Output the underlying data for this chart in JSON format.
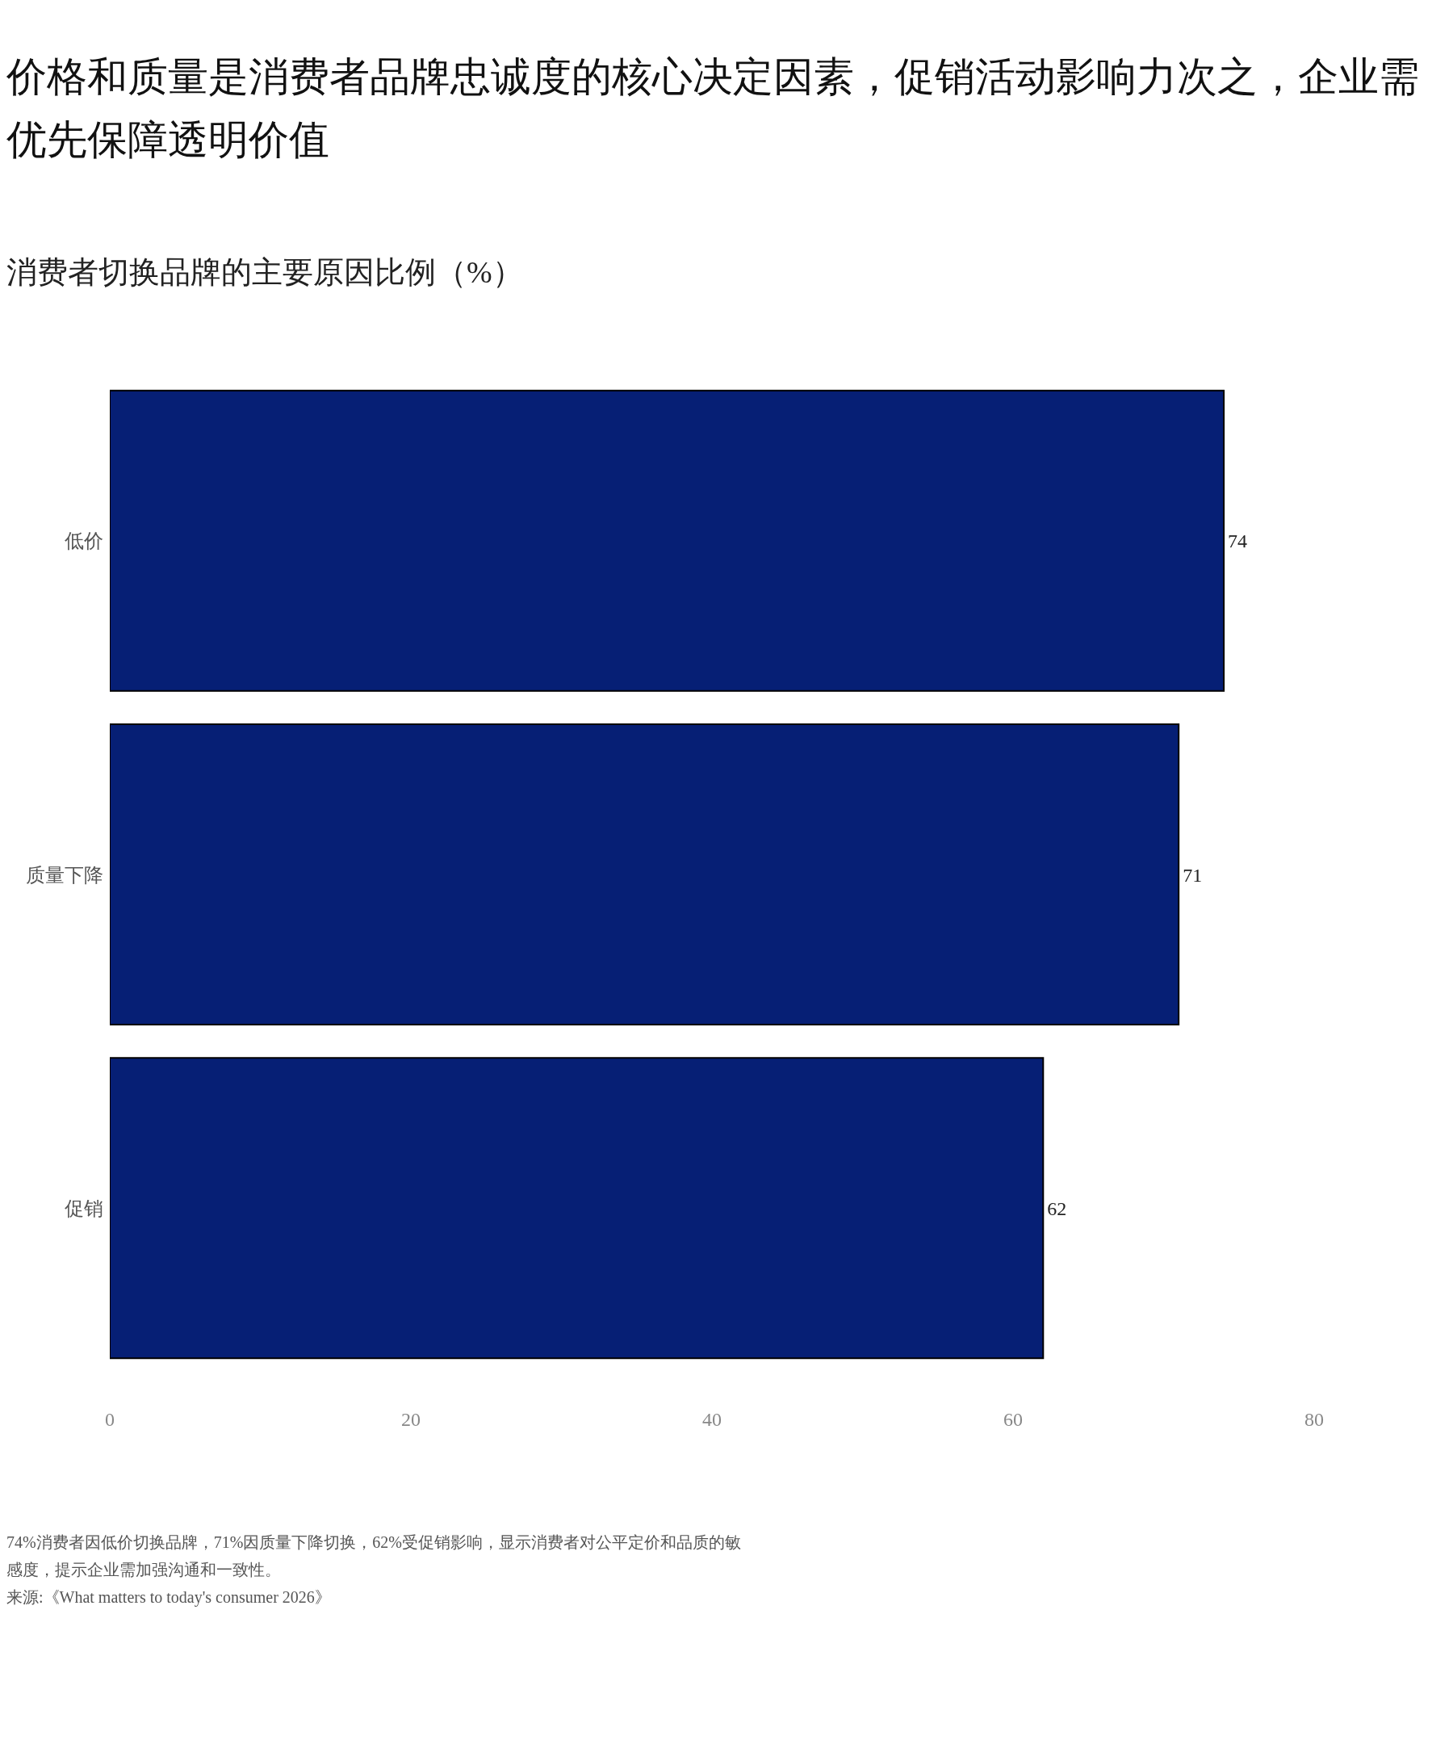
{
  "chart_data": {
    "type": "bar",
    "orientation": "horizontal",
    "title": "价格和质量是消费者品牌忠诚度的核心决定因素，促销活动影响力次之，企业需优先保障透明价值",
    "subtitle": "消费者切换品牌的主要原因比例（%）",
    "categories": [
      "低价",
      "质量下降",
      "促销"
    ],
    "values": [
      74,
      71,
      62
    ],
    "color": "#061f75",
    "xlim": [
      0,
      80
    ],
    "xticks": [
      0,
      20,
      40,
      60,
      80
    ],
    "data_labels": true,
    "grid": false,
    "legend": false,
    "annotations": [
      "74%消费者因低价切换品牌，71%因质量下降切换，62%受促销影响，显示消费者对公平定价和品质的敏感度，提示企业需加强沟通和一致性。",
      "来源:《What matters to today's consumer 2026》"
    ]
  }
}
